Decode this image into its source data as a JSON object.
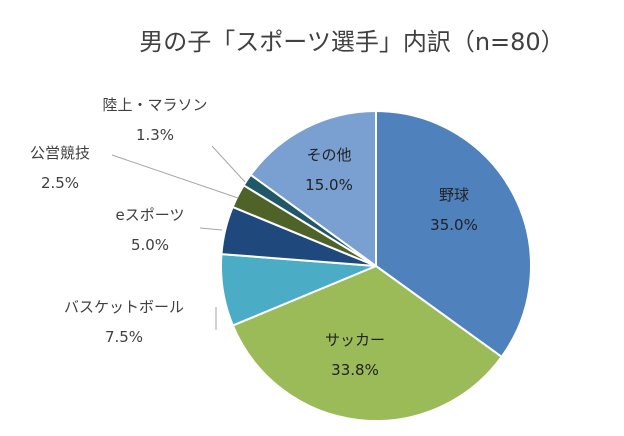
{
  "chart_data": {
    "type": "pie",
    "title": "男の子「スポーツ選手」内訳（n=80）",
    "slices": [
      {
        "name": "野球",
        "value": 35.0,
        "label": "35.0%",
        "color": "#4f81bd"
      },
      {
        "name": "サッカー",
        "value": 33.8,
        "label": "33.8%",
        "color": "#9bbb59"
      },
      {
        "name": "バスケットボール",
        "value": 7.5,
        "label": "7.5%",
        "color": "#4bacc6"
      },
      {
        "name": "eスポーツ",
        "value": 5.0,
        "label": "5.0%",
        "color": "#1f497d"
      },
      {
        "name": "公営競技",
        "value": 2.5,
        "label": "2.5%",
        "color": "#4f6228"
      },
      {
        "name": "陸上・マラソン",
        "value": 1.3,
        "label": "1.3%",
        "color": "#215868"
      },
      {
        "name": "その他",
        "value": 15.0,
        "label": "15.0%",
        "color": "#7a9fd1"
      }
    ],
    "start_angle_deg": 0,
    "direction": "clockwise"
  }
}
